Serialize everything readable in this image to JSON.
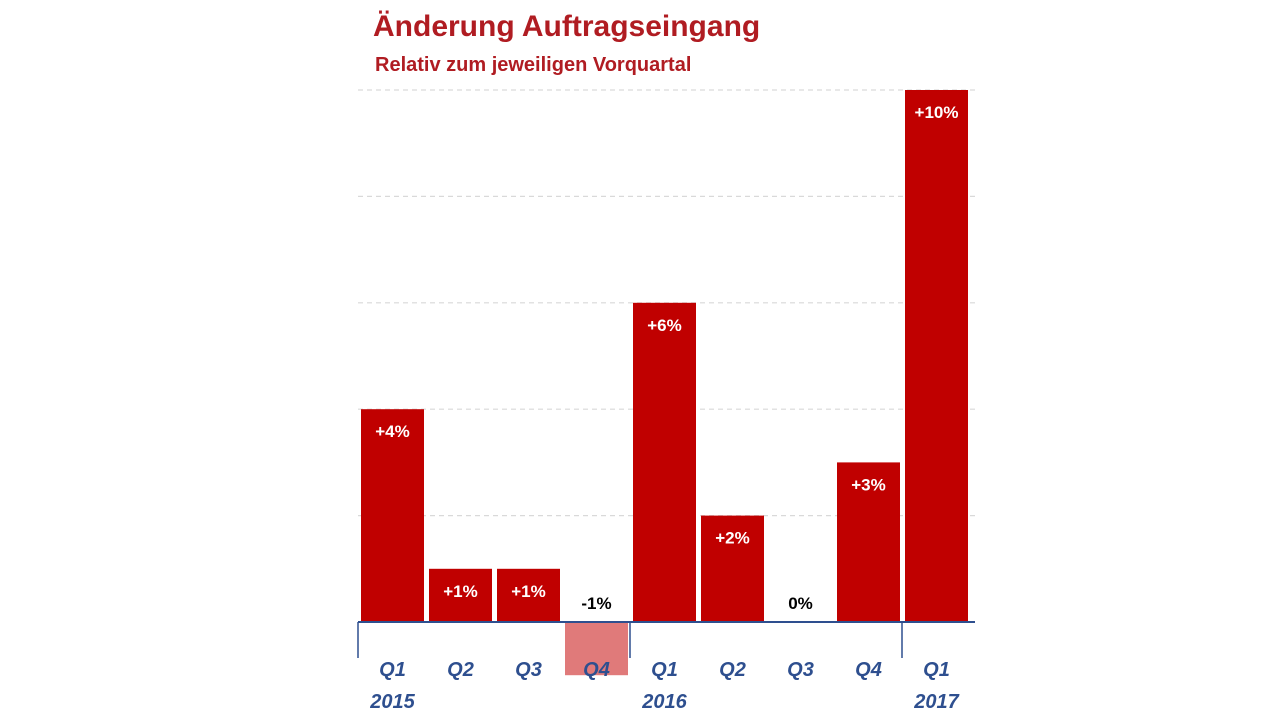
{
  "chart_data": {
    "type": "bar",
    "title": "Änderung Auftragseingang",
    "subtitle": "Relativ zum jeweiligen Vorquartal",
    "categories": [
      "Q1",
      "Q2",
      "Q3",
      "Q4",
      "Q1",
      "Q2",
      "Q3",
      "Q4",
      "Q1"
    ],
    "year_labels": [
      {
        "label": "2015",
        "index": 0
      },
      {
        "label": "2016",
        "index": 4
      },
      {
        "label": "2017",
        "index": 8
      }
    ],
    "values": [
      4,
      1,
      1,
      -1,
      6,
      2,
      0,
      3,
      10
    ],
    "data_labels": [
      "+4%",
      "+1%",
      "+1%",
      "-1%",
      "+6%",
      "+2%",
      "0%",
      "+3%",
      "+10%"
    ],
    "ylim": [
      -1,
      10
    ],
    "grid": true,
    "xlabel": "",
    "ylabel": "",
    "colors": {
      "positive": "#c00000",
      "negative": "#e07a7a",
      "title": "#b01c22",
      "axis": "#2e4f8f",
      "category_label": "#2e4f8f",
      "grid": "#d9d9d9"
    }
  }
}
